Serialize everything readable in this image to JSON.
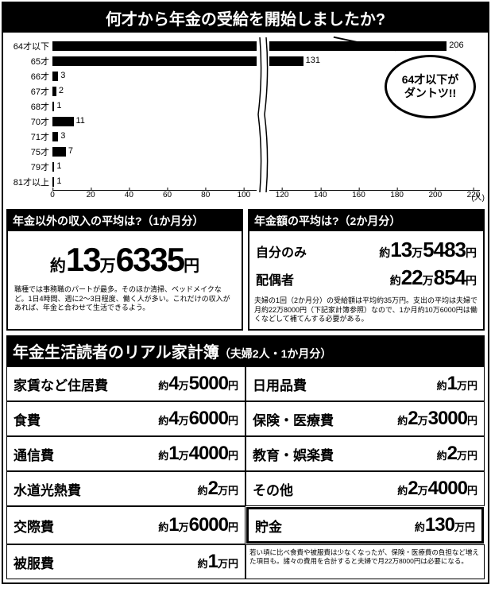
{
  "chart": {
    "title": "何才から年金の受給を開始しましたか?",
    "categories": [
      "64才以下",
      "65才",
      "66才",
      "67才",
      "68才",
      "70才",
      "71才",
      "75才",
      "79才",
      "81才以上"
    ],
    "values": [
      206,
      131,
      3,
      2,
      1,
      11,
      3,
      7,
      1,
      1
    ],
    "max_display": 220,
    "break_at": 110,
    "ticks": [
      0,
      20,
      40,
      60,
      80,
      100,
      120,
      140,
      160,
      180,
      200,
      220
    ],
    "axis_unit": "(人)",
    "callout": "64才以下が\nダントツ!!",
    "bar_color": "#000000"
  },
  "income_box": {
    "title": "年金以外の収入の平均は?（1か月分）",
    "prefix": "約",
    "man": "13",
    "man_unit": "万",
    "rest": "6335",
    "yen": "円",
    "note": "職種では事務職のパートが最多。そのほか清掃、ベッドメイクなど。1日4時間、週に2〜3日程度、働く人が多い。これだけの収入があれば、年金と合わせて生活できるよう。"
  },
  "pension_box": {
    "title": "年金額の平均は?（2か月分）",
    "rows": [
      {
        "label": "自分のみ",
        "prefix": "約",
        "man": "13",
        "man_unit": "万",
        "rest": "5483",
        "yen": "円"
      },
      {
        "label": "配偶者",
        "prefix": "約",
        "man": "22",
        "man_unit": "万",
        "rest": "854",
        "yen": "円"
      }
    ],
    "note": "夫婦の1回（2か月分）の受給額は平均約35万円。支出の平均は夫婦で月約22万8000円（下記家計簿参照）なので、1か月約10万6000円は働くなどして補てんする必要がある。"
  },
  "budget": {
    "title_main": "年金生活読者のリアル家計簿",
    "title_sub": "（夫婦2人・1か月分）",
    "items": [
      {
        "label": "家賃など住居費",
        "prefix": "約",
        "man": "4",
        "man_unit": "万",
        "rest": "5000",
        "yen": "円"
      },
      {
        "label": "日用品費",
        "prefix": "約",
        "man": "1",
        "man_unit": "万",
        "rest": "",
        "yen": "円"
      },
      {
        "label": "食費",
        "prefix": "約",
        "man": "4",
        "man_unit": "万",
        "rest": "6000",
        "yen": "円"
      },
      {
        "label": "保険・医療費",
        "prefix": "約",
        "man": "2",
        "man_unit": "万",
        "rest": "3000",
        "yen": "円"
      },
      {
        "label": "通信費",
        "prefix": "約",
        "man": "1",
        "man_unit": "万",
        "rest": "4000",
        "yen": "円"
      },
      {
        "label": "教育・娯楽費",
        "prefix": "約",
        "man": "2",
        "man_unit": "万",
        "rest": "",
        "yen": "円"
      },
      {
        "label": "水道光熱費",
        "prefix": "約",
        "man": "2",
        "man_unit": "万",
        "rest": "",
        "yen": "円"
      },
      {
        "label": "その他",
        "prefix": "約",
        "man": "2",
        "man_unit": "万",
        "rest": "4000",
        "yen": "円"
      },
      {
        "label": "交際費",
        "prefix": "約",
        "man": "1",
        "man_unit": "万",
        "rest": "6000",
        "yen": "円"
      },
      {
        "label": "貯金",
        "prefix": "約",
        "man": "130",
        "man_unit": "万",
        "rest": "",
        "yen": "円",
        "savings": true
      },
      {
        "label": "被服費",
        "prefix": "約",
        "man": "1",
        "man_unit": "万",
        "rest": "",
        "yen": "円"
      }
    ],
    "note": "若い頃に比べ食費や被服費は少なくなったが、保険・医療費の負担など増えた項目も。諸々の費用を合計すると夫婦で月22万8000円は必要になる。"
  }
}
